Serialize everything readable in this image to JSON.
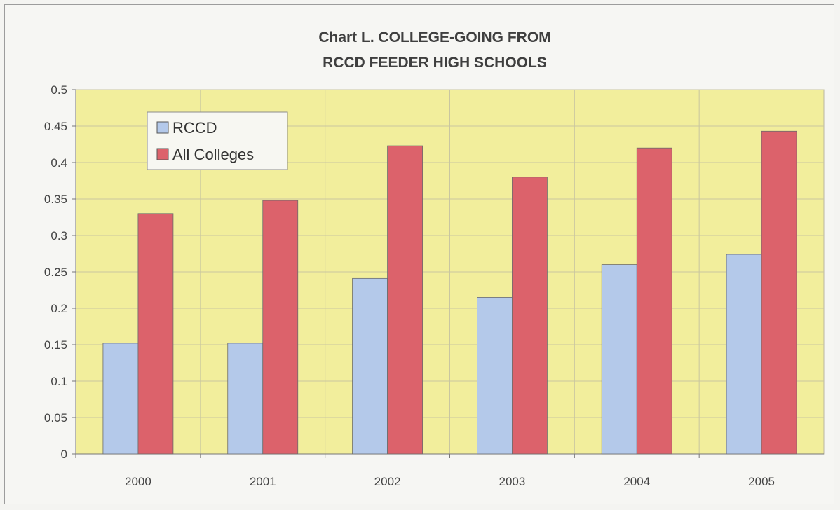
{
  "chart_data": {
    "type": "bar",
    "title": [
      "Chart L. COLLEGE-GOING FROM",
      "RCCD FEEDER HIGH SCHOOLS"
    ],
    "xlabel": "",
    "ylabel": "",
    "categories": [
      "2000",
      "2001",
      "2002",
      "2003",
      "2004",
      "2005"
    ],
    "series": [
      {
        "name": "RCCD",
        "values": [
          0.152,
          0.152,
          0.241,
          0.215,
          0.26,
          0.274
        ],
        "color": "#b4c9ea"
      },
      {
        "name": "All Colleges",
        "values": [
          0.33,
          0.348,
          0.423,
          0.38,
          0.42,
          0.443
        ],
        "color": "#dc626b"
      }
    ],
    "ylim": [
      0,
      0.5
    ],
    "yticks": [
      "0",
      "0.05",
      "0.1",
      "0.15",
      "0.2",
      "0.25",
      "0.3",
      "0.35",
      "0.4",
      "0.45",
      "0.5"
    ],
    "grid": true,
    "legend_position": "top-left",
    "plot_background": "#f2ee9c"
  }
}
